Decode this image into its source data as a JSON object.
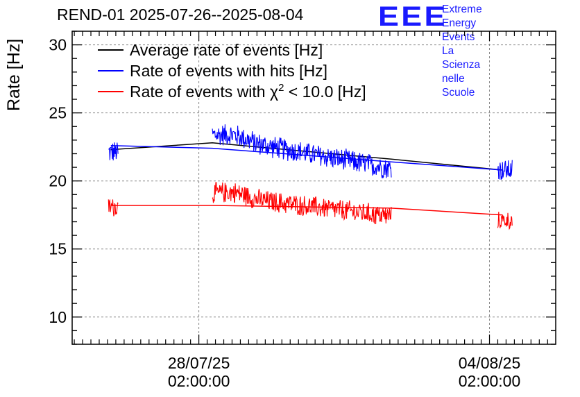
{
  "chart_data": {
    "type": "line",
    "title": "REND-01 2025-07-26--2025-08-04",
    "ylabel": "Rate [Hz]",
    "xlabel": "",
    "ylim": [
      8,
      31
    ],
    "xlim": [
      0.0,
      1.0
    ],
    "y_ticks": [
      10,
      15,
      20,
      25,
      30
    ],
    "x_ticks": [
      {
        "pos": 0.262,
        "date": "28/07/25",
        "time": "02:00:00"
      },
      {
        "pos": 0.863,
        "date": "04/08/25",
        "time": "02:00:00"
      }
    ],
    "grid": true,
    "legend_position": "top-left",
    "series": [
      {
        "name": "Average rate of events [Hz]",
        "color": "#000000",
        "points": [
          [
            0.08,
            22.3
          ],
          [
            0.29,
            22.8
          ],
          [
            0.66,
            21.6
          ],
          [
            0.89,
            20.8
          ]
        ]
      },
      {
        "name": "Rate of events with hits [Hz]",
        "color": "#0000ff",
        "segments": [
          {
            "x": [
              0.075,
              0.095
            ],
            "mean": [
              22.1,
              22.1
            ],
            "spread": 0.9
          },
          {
            "x": [
              0.29,
              0.66
            ],
            "mean": [
              23.3,
              20.9
            ],
            "spread": 0.9
          },
          {
            "x": [
              0.88,
              0.91
            ],
            "mean": [
              20.8,
              20.8
            ],
            "spread": 0.9
          }
        ],
        "connectors": [
          [
            0.08,
            22.6
          ],
          [
            0.29,
            22.4
          ],
          [
            0.66,
            21.4
          ],
          [
            0.89,
            20.8
          ]
        ]
      },
      {
        "name": "Rate of events with χ² < 10.0 [Hz]",
        "color": "#ff0000",
        "segments": [
          {
            "x": [
              0.075,
              0.095
            ],
            "mean": [
              18.1,
              18.1
            ],
            "spread": 0.8
          },
          {
            "x": [
              0.29,
              0.66
            ],
            "mean": [
              19.0,
              17.4
            ],
            "spread": 0.85
          },
          {
            "x": [
              0.88,
              0.91
            ],
            "mean": [
              17.1,
              17.1
            ],
            "spread": 0.7
          }
        ],
        "connectors": [
          [
            0.08,
            18.2
          ],
          [
            0.29,
            18.2
          ],
          [
            0.66,
            18.0
          ],
          [
            0.89,
            17.5
          ]
        ]
      }
    ],
    "legend": [
      {
        "label": "Average rate of events [Hz]",
        "color": "#000000"
      },
      {
        "label": "Rate of events with hits [Hz]",
        "color": "#0000ff"
      },
      {
        "label_prefix": "Rate of events with ",
        "label_chi": "χ",
        "label_sup": "2",
        "label_suffix": " < 10.0 [Hz]",
        "color": "#ff0000"
      }
    ]
  },
  "logo": {
    "mark": "EEE",
    "line1": "Extreme Energy Events",
    "line2": "La Scienza nelle Scuole"
  }
}
